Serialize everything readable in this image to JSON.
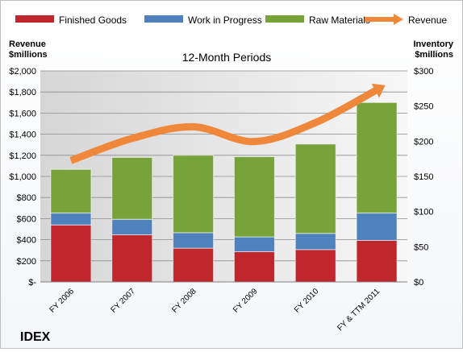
{
  "chart_data": {
    "type": "bar",
    "stacked": true,
    "title": "12-Month Periods",
    "company": "IDEX",
    "categories": [
      "FY 2006",
      "FY 2007",
      "FY 2008",
      "FY 2009",
      "FY 2010",
      "FY & TTM 2011"
    ],
    "left_axis": {
      "label_line1": "Revenue",
      "label_line2": "$millions",
      "ylim": [
        0,
        2000
      ],
      "ticks": [
        "$-",
        "$200",
        "$400",
        "$600",
        "$800",
        "$1,000",
        "$1,200",
        "$1,400",
        "$1,600",
        "$1,800",
        "$2,000"
      ]
    },
    "right_axis": {
      "label_line1": "Inventory",
      "label_line2": "$millions",
      "ylim": [
        0,
        300
      ],
      "ticks": [
        "$0",
        "$50",
        "$100",
        "$150",
        "$200",
        "$250",
        "$300"
      ]
    },
    "series": [
      {
        "name": "Finished Goods",
        "type": "bar",
        "axis": "right",
        "color": "#c0272d",
        "values": [
          81,
          67,
          48,
          43,
          46,
          59
        ]
      },
      {
        "name": "Work in Progress",
        "type": "bar",
        "axis": "right",
        "color": "#4f81bd",
        "values": [
          17,
          22,
          22,
          21,
          23,
          39
        ]
      },
      {
        "name": "Raw Materials",
        "type": "bar",
        "axis": "right",
        "color": "#77a33a",
        "values": [
          62,
          88,
          110,
          114,
          127,
          157
        ]
      },
      {
        "name": "Revenue",
        "type": "line",
        "axis": "left",
        "color": "#f0883c",
        "values": [
          1150,
          1360,
          1470,
          1330,
          1510,
          1820
        ]
      }
    ],
    "grid": true,
    "legend": "top"
  }
}
